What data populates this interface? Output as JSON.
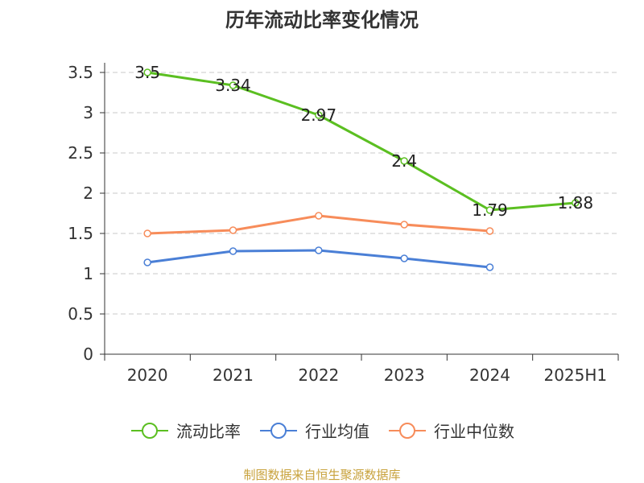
{
  "chart_data": {
    "type": "line",
    "title": "历年流动比率变化情况",
    "categories": [
      "2020",
      "2021",
      "2022",
      "2023",
      "2024",
      "2025H1"
    ],
    "ylim": [
      0,
      3.5
    ],
    "yticks": [
      "0",
      "0.5",
      "1",
      "1.5",
      "2",
      "2.5",
      "3",
      "3.5"
    ],
    "grid": true,
    "legend_position": "bottom",
    "series": [
      {
        "name": "流动比率",
        "color": "#5bbf21",
        "values": [
          3.5,
          3.34,
          2.97,
          2.4,
          1.79,
          1.88
        ],
        "labels": [
          "3.5",
          "3.34",
          "2.97",
          "2.4",
          "1.79",
          "1.88"
        ]
      },
      {
        "name": "行业均值",
        "color": "#4a7fd6",
        "values": [
          1.14,
          1.28,
          1.29,
          1.19,
          1.08,
          null
        ]
      },
      {
        "name": "行业中位数",
        "color": "#f78c5a",
        "values": [
          1.5,
          1.54,
          1.72,
          1.61,
          1.53,
          null
        ]
      }
    ]
  },
  "source": "制图数据来自恒生聚源数据库"
}
